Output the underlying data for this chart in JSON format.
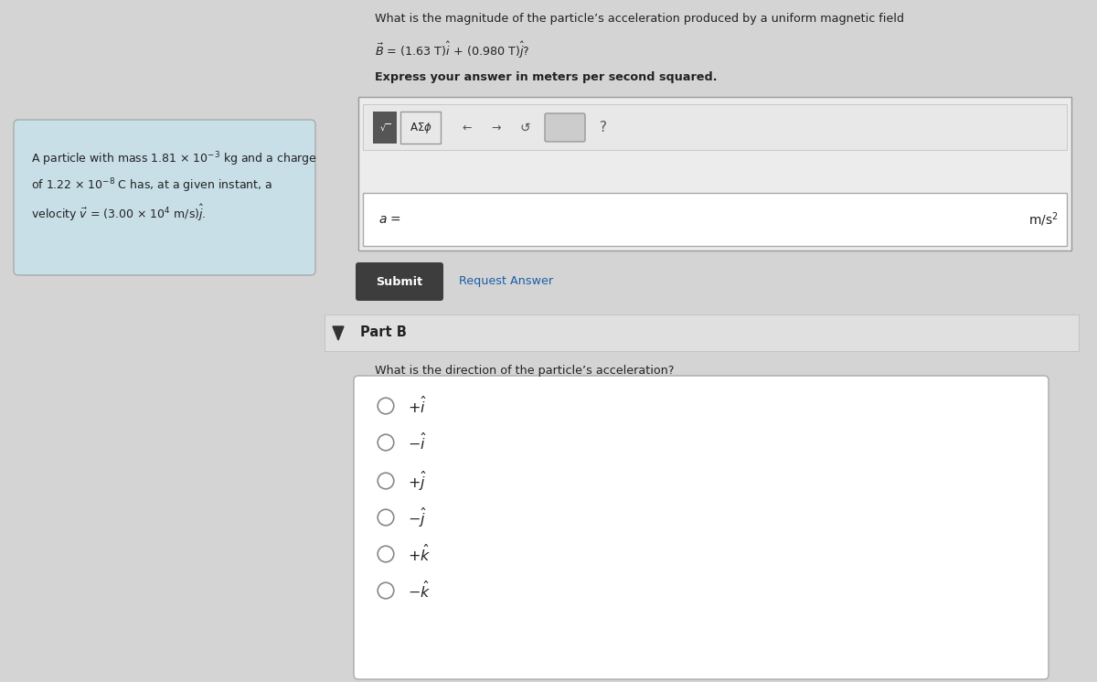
{
  "bg_color": "#d4d4d4",
  "left_box_color": "#c8dfe8",
  "question_line1": "What is the magnitude of the particle’s acceleration produced by a uniform magnetic field",
  "question_line2_pre": "B",
  "question_line2_post": " = (1.63 T)",
  "question_line2_i": "i",
  "question_line2_mid": " + (0.980 T)",
  "question_line2_j": "j",
  "question_line2_end": "?",
  "bold_line": "Express your answer in meters per second squared.",
  "submit_text": "Submit",
  "request_answer_text": "Request Answer",
  "part_b_label": "Part B",
  "part_b_question": "What is the direction of the particle’s acceleration?",
  "input_box_color": "#ffffff",
  "submit_btn_color": "#3d3d3d",
  "submit_btn_text_color": "#ffffff",
  "answer_box_color": "#ffffff",
  "toolbar_color": "#e8e8e8",
  "outer_box_color": "#ececec",
  "text_color": "#222222",
  "radio_color": "#888888",
  "part_b_bg": "#e0e0e0",
  "link_color": "#1a5fa8"
}
